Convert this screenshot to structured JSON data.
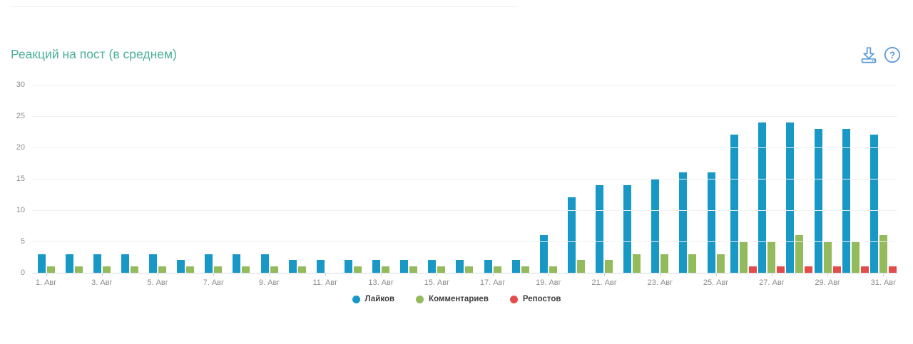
{
  "widget": {
    "title": "Реакций на пост (в среднем)"
  },
  "colors": {
    "title": "#4bb09a",
    "icon_blue": "#5b9bd5",
    "likes": "#1898c5",
    "comments": "#93ba5b",
    "reposts": "#e34c4a",
    "axis_text": "#8c8c8c",
    "grid": "#f0f1f2",
    "baseline": "#d5dce0"
  },
  "chart_data": {
    "type": "bar",
    "title": "Реакций на пост (в среднем)",
    "n_days": 31,
    "x_tick_labels": [
      "1. Авг",
      "3. Авг",
      "5. Авг",
      "7. Авг",
      "9. Авг",
      "11. Авг",
      "13. Авг",
      "15. Авг",
      "17. Авг",
      "19. Авг",
      "21. Авг",
      "23. Авг",
      "25. Авг",
      "27. Авг",
      "29. Авг",
      "31. Авг"
    ],
    "x_tick_days": [
      1,
      3,
      5,
      7,
      9,
      11,
      13,
      15,
      17,
      19,
      21,
      23,
      25,
      27,
      29,
      31
    ],
    "ylim": [
      0,
      30
    ],
    "y_ticks": [
      0,
      5,
      10,
      15,
      20,
      25,
      30
    ],
    "grid": "horizontal",
    "legend_position": "bottom-center",
    "series": [
      {
        "name": "Лайков",
        "color": "#1898c5",
        "values": [
          3,
          3,
          3,
          3,
          3,
          2,
          3,
          3,
          3,
          2,
          2,
          2,
          2,
          2,
          2,
          2,
          2,
          2,
          6,
          12,
          14,
          14,
          15,
          16,
          16,
          22,
          24,
          24,
          23,
          23,
          22
        ]
      },
      {
        "name": "Комментариев",
        "color": "#93ba5b",
        "values": [
          1,
          1,
          1,
          1,
          1,
          1,
          1,
          1,
          1,
          1,
          0,
          1,
          1,
          1,
          1,
          1,
          1,
          1,
          1,
          2,
          2,
          3,
          3,
          3,
          3,
          5,
          5,
          6,
          5,
          5,
          6
        ]
      },
      {
        "name": "Репостов",
        "color": "#e34c4a",
        "values": [
          0,
          0,
          0,
          0,
          0,
          0,
          0,
          0,
          0,
          0,
          0,
          0,
          0,
          0,
          0,
          0,
          0,
          0,
          0,
          0,
          0,
          0,
          0,
          0,
          0,
          1,
          1,
          1,
          1,
          1,
          1
        ]
      }
    ]
  }
}
